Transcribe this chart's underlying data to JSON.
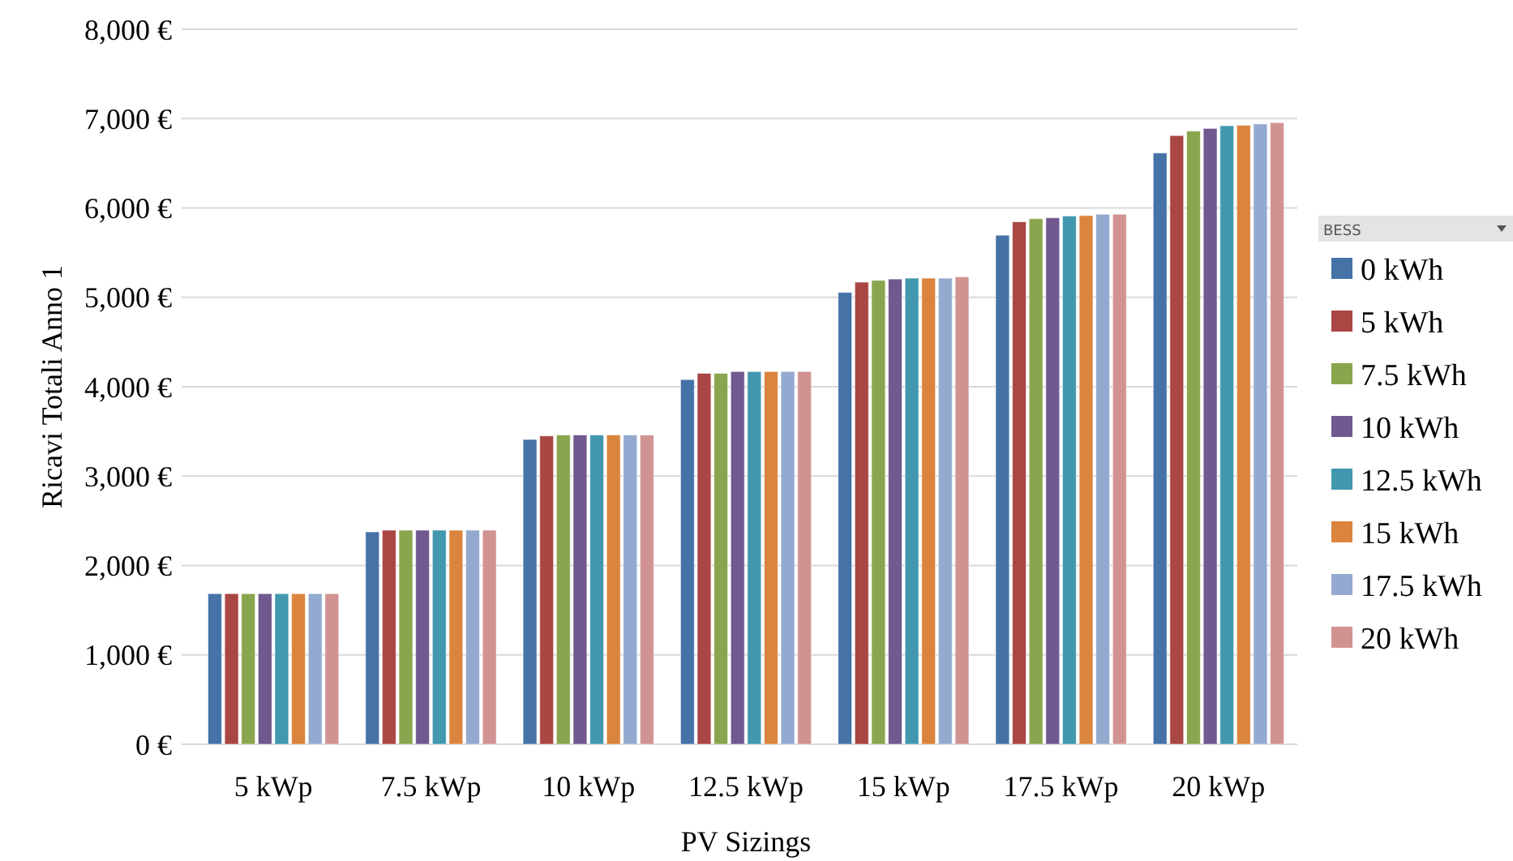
{
  "chart_data": {
    "type": "bar",
    "xlabel": "PV Sizings",
    "ylabel": "Ricavi Totali Anno 1",
    "legend_title": "BESS",
    "legend": "right",
    "grid": "y",
    "categories": [
      "5 kWp",
      "7.5 kWp",
      "10 kWp",
      "12.5 kWp",
      "15 kWp",
      "17.5 kWp",
      "20 kWp"
    ],
    "ylim": [
      0,
      8000
    ],
    "yticks": [
      {
        "value": 0,
        "label": "0 €"
      },
      {
        "value": 1000,
        "label": "1,000 €"
      },
      {
        "value": 2000,
        "label": "2,000 €"
      },
      {
        "value": 3000,
        "label": "3,000 €"
      },
      {
        "value": 4000,
        "label": "4,000 €"
      },
      {
        "value": 5000,
        "label": "5,000 €"
      },
      {
        "value": 6000,
        "label": "6,000 €"
      },
      {
        "value": 7000,
        "label": "7,000 €"
      },
      {
        "value": 8000,
        "label": "8,000 €"
      }
    ],
    "series": [
      {
        "name": "0 kWh",
        "color": "#4572a7",
        "values": [
          1685,
          2376,
          3410,
          4080,
          5055,
          5695,
          6615
        ]
      },
      {
        "name": "5 kWh",
        "color": "#aa4643",
        "values": [
          1685,
          2395,
          3450,
          4150,
          5170,
          5845,
          6810
        ]
      },
      {
        "name": "7.5 kWh",
        "color": "#89a54e",
        "values": [
          1685,
          2395,
          3460,
          4150,
          5190,
          5880,
          6860
        ]
      },
      {
        "name": "10 kWh",
        "color": "#71588f",
        "values": [
          1685,
          2395,
          3460,
          4170,
          5205,
          5890,
          6890
        ]
      },
      {
        "name": "12.5 kWh",
        "color": "#4198af",
        "values": [
          1685,
          2395,
          3460,
          4170,
          5215,
          5910,
          6920
        ]
      },
      {
        "name": "15 kWh",
        "color": "#db843d",
        "values": [
          1685,
          2395,
          3460,
          4170,
          5215,
          5915,
          6925
        ]
      },
      {
        "name": "17.5 kWh",
        "color": "#93a9cf",
        "values": [
          1685,
          2395,
          3460,
          4170,
          5215,
          5930,
          6940
        ]
      },
      {
        "name": "20 kWh",
        "color": "#d19392",
        "values": [
          1685,
          2395,
          3460,
          4170,
          5230,
          5930,
          6955
        ]
      }
    ]
  }
}
